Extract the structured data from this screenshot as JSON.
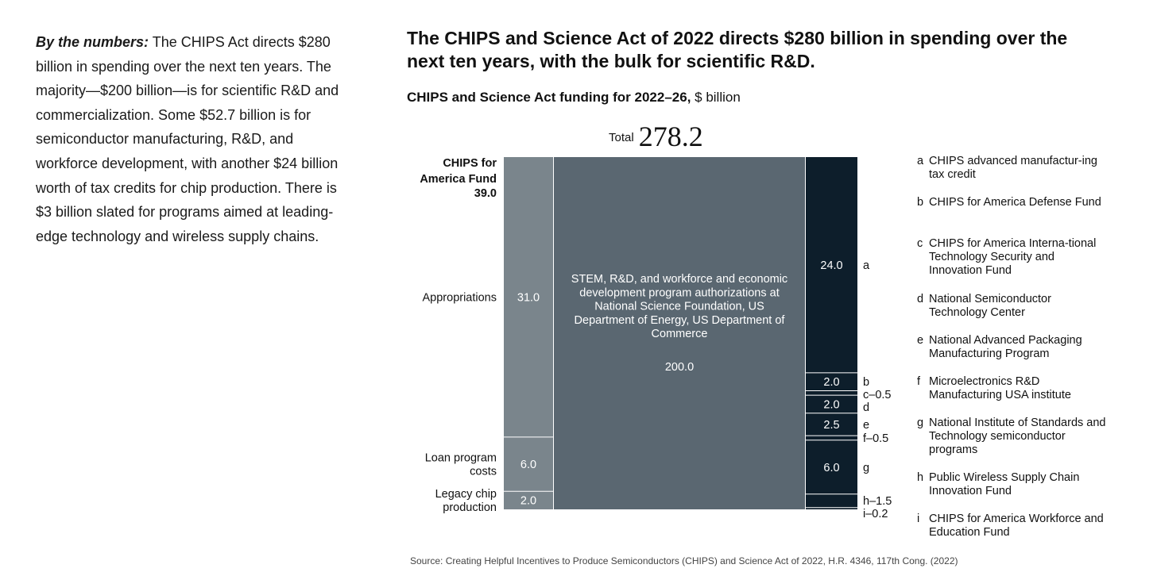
{
  "intro": {
    "lead": "By the numbers:",
    "body": " The CHIPS Act directs $280 billion in spending over the next ten years. The majority—$200 billion—is for scientific R&D and commercialization. Some $52.7 billion is for semiconductor manufacturing, R&D, and workforce development, with another $24 billion worth of tax credits for chip production. There is $3 billion slated for programs aimed at leading-edge technology and wireless supply chains."
  },
  "chart_data": {
    "type": "bar",
    "title": "The CHIPS and Science Act of 2022 directs $280 billion in spending over the next ten years, with the bulk for scientific R&D.",
    "subtitle_main": "CHIPS and Science Act funding for 2022–26,",
    "subtitle_unit": " $ billion",
    "total_label": "Total",
    "total_value": "278.2",
    "fund_label_line1": "CHIPS for",
    "fund_label_line2": "America Fund",
    "fund_value": "39.0",
    "column_fund": [
      {
        "label_lines": [
          "Appropriations"
        ],
        "value": 31.0,
        "display": "31.0"
      },
      {
        "label_lines": [
          "Loan program",
          "costs"
        ],
        "value": 6.0,
        "display": "6.0"
      },
      {
        "label_lines": [
          "Legacy chip",
          "production"
        ],
        "value": 2.0,
        "display": "2.0"
      }
    ],
    "column_stem": {
      "label_lines": [
        "STEM, R&D, and workforce and economic",
        "development program authorizations at",
        "National Science Foundation, US",
        "Department of Energy, US Department of",
        "Commerce"
      ],
      "value": 200.0,
      "display": "200.0"
    },
    "column_other": [
      {
        "key": "a",
        "value": 24.0,
        "display": "24.0",
        "outside_label": "a"
      },
      {
        "key": "b",
        "value": 2.0,
        "display": "2.0",
        "outside_label": "b"
      },
      {
        "key": "c",
        "value": 0.5,
        "display": "",
        "outside_label": "c–0.5"
      },
      {
        "key": "d",
        "value": 2.0,
        "display": "2.0",
        "outside_label": "d"
      },
      {
        "key": "e",
        "value": 2.5,
        "display": "2.5",
        "outside_label": "e"
      },
      {
        "key": "f",
        "value": 0.5,
        "display": "",
        "outside_label": "f–0.5"
      },
      {
        "key": "g",
        "value": 6.0,
        "display": "6.0",
        "outside_label": "g"
      },
      {
        "key": "h",
        "value": 1.5,
        "display": "",
        "outside_label": "h–1.5"
      },
      {
        "key": "i",
        "value": 0.2,
        "display": "",
        "outside_label": "i–0.2"
      }
    ],
    "legend": [
      {
        "key": "a",
        "text": "CHIPS advanced manufactur-ing tax credit"
      },
      {
        "key": "b",
        "text": "CHIPS for America Defense Fund"
      },
      {
        "key": "c",
        "text": "CHIPS for America Interna-tional Technology Security and Innovation Fund"
      },
      {
        "key": "d",
        "text": "National Semiconductor Technology Center"
      },
      {
        "key": "e",
        "text": "National Advanced Packaging Manufacturing Program"
      },
      {
        "key": "f",
        "text": "Microelectronics R&D Manufacturing USA institute"
      },
      {
        "key": "g",
        "text": "National Institute of Standards and Technology semiconductor programs"
      },
      {
        "key": "h",
        "text": "Public Wireless Supply Chain Innovation Fund"
      },
      {
        "key": "i",
        "text": "CHIPS for America Workforce and Education Fund"
      }
    ],
    "colors": {
      "fund": "#7a858c",
      "stem": "#5a6771",
      "other": "#0d1e2b",
      "divider": "#ffffff"
    }
  },
  "source": "Source: Creating Helpful Incentives to Produce Semiconductors (CHIPS) and Science Act of 2022, H.R. 4346, 117th Cong. (2022)"
}
